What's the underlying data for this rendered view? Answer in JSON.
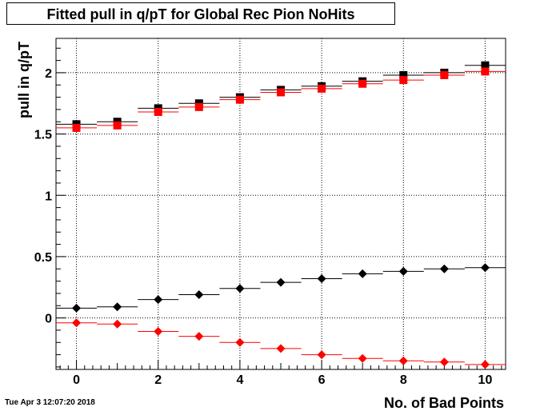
{
  "title": "Fitted pull in q/pT for Global Rec Pion NoHits",
  "timestamp": "Tue Apr  3 12:07:20 2018",
  "chart_data": {
    "type": "scatter",
    "title": "Fitted pull in q/pT for Global Rec Pion NoHits",
    "xlabel": "No. of Bad Points",
    "ylabel": "pull in q/pT",
    "xlim": [
      -0.5,
      10.5
    ],
    "ylim": [
      -0.42,
      2.28
    ],
    "xticks": [
      0,
      2,
      4,
      6,
      8,
      10
    ],
    "yticks": [
      0,
      0.5,
      1,
      1.5,
      2
    ],
    "ytick_labels": [
      "0",
      "0.5",
      "1",
      "1.5",
      "2"
    ],
    "grid": true,
    "x": [
      0,
      1,
      2,
      3,
      4,
      5,
      6,
      7,
      8,
      9,
      10
    ],
    "series": [
      {
        "marker": "square",
        "color": "#000000",
        "values": [
          1.58,
          1.6,
          1.71,
          1.75,
          1.8,
          1.86,
          1.89,
          1.93,
          1.98,
          2.0,
          2.06
        ]
      },
      {
        "marker": "square",
        "color": "#ff0000",
        "values": [
          1.55,
          1.57,
          1.68,
          1.72,
          1.78,
          1.84,
          1.87,
          1.91,
          1.94,
          1.98,
          2.01
        ]
      },
      {
        "marker": "diamond",
        "color": "#000000",
        "values": [
          0.08,
          0.09,
          0.15,
          0.19,
          0.24,
          0.29,
          0.32,
          0.36,
          0.38,
          0.4,
          0.41
        ]
      },
      {
        "marker": "diamond",
        "color": "#ff0000",
        "values": [
          -0.04,
          -0.05,
          -0.11,
          -0.15,
          -0.2,
          -0.25,
          -0.3,
          -0.33,
          -0.35,
          -0.36,
          -0.38
        ]
      }
    ]
  }
}
